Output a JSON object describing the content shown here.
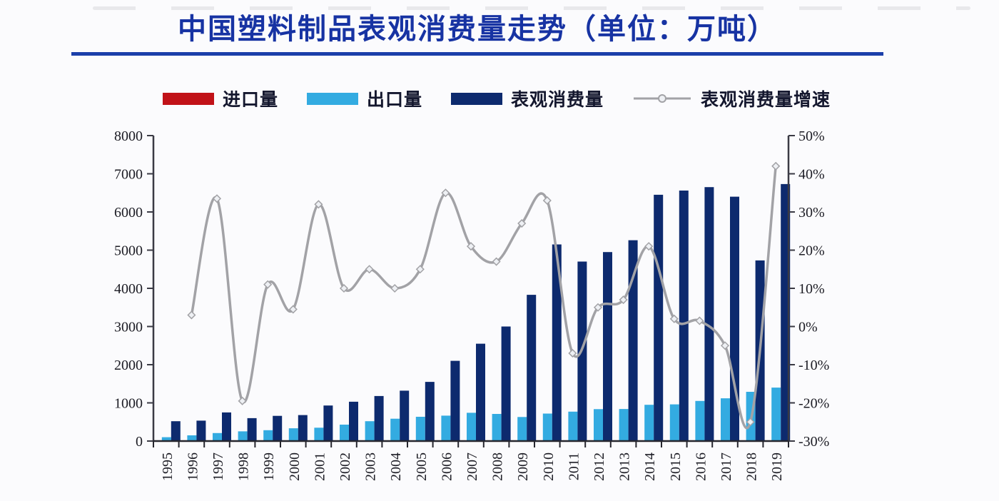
{
  "header": {
    "title": "中国塑料制品表观消费量走势（单位：万吨）",
    "title_color": "#1733a3",
    "underline_color": "#1b3faa"
  },
  "legend": {
    "items": [
      {
        "label": "进口量",
        "type": "bar",
        "color": "#c11218"
      },
      {
        "label": "出口量",
        "type": "bar",
        "color": "#33abe1"
      },
      {
        "label": "表观消费量",
        "type": "bar",
        "color": "#0d2a6e"
      },
      {
        "label": "表观消费量增速",
        "type": "line",
        "color": "#a2a2a6"
      }
    ]
  },
  "chart_data": {
    "type": "bar+line",
    "title": "中国塑料制品表观消费量走势（单位：万吨）",
    "categories": [
      "1995",
      "1996",
      "1997",
      "1998",
      "1999",
      "2000",
      "2001",
      "2002",
      "2003",
      "2004",
      "2005",
      "2006",
      "2007",
      "2008",
      "2009",
      "2010",
      "2011",
      "2012",
      "2013",
      "2014",
      "2015",
      "2016",
      "2017",
      "2018",
      "2019"
    ],
    "series": [
      {
        "name": "进口量",
        "type": "bar",
        "axis": "left",
        "color": "#c11218",
        "values": null,
        "note": "bars too small to be visible in the image"
      },
      {
        "name": "出口量",
        "type": "bar",
        "axis": "left",
        "color": "#33abe1",
        "values": [
          100,
          150,
          210,
          255,
          285,
          335,
          350,
          430,
          520,
          585,
          635,
          665,
          740,
          710,
          630,
          720,
          770,
          835,
          840,
          950,
          960,
          1050,
          1120,
          1290,
          1400
        ]
      },
      {
        "name": "表观消费量",
        "type": "bar",
        "axis": "left",
        "color": "#0d2a6e",
        "values": [
          520,
          535,
          750,
          600,
          660,
          680,
          930,
          1030,
          1180,
          1320,
          1550,
          2100,
          2550,
          3000,
          3830,
          5150,
          4700,
          4950,
          5260,
          6450,
          6560,
          6650,
          6400,
          4730,
          6730
        ]
      },
      {
        "name": "表观消费量增速",
        "type": "line",
        "axis": "right",
        "color": "#a2a2a6",
        "marker_fill": "#eef0f4",
        "values": [
          null,
          3,
          33.5,
          -19.5,
          11,
          4.5,
          32,
          10,
          15,
          10,
          15,
          35,
          21,
          17,
          27,
          33,
          -7,
          5,
          7,
          21,
          2,
          1.5,
          -5,
          -25,
          42
        ]
      }
    ],
    "left_axis": {
      "min": 0,
      "max": 8000,
      "step": 1000,
      "tick_labels": [
        "0",
        "1000",
        "2000",
        "3000",
        "4000",
        "5000",
        "6000",
        "7000",
        "8000"
      ]
    },
    "right_axis": {
      "min": -30,
      "max": 50,
      "step": 10,
      "tick_labels": [
        "-30%",
        "-20%",
        "-10%",
        "0%",
        "10%",
        "20%",
        "30%",
        "40%",
        "50%"
      ]
    },
    "grid": false,
    "legend_position": "top"
  }
}
